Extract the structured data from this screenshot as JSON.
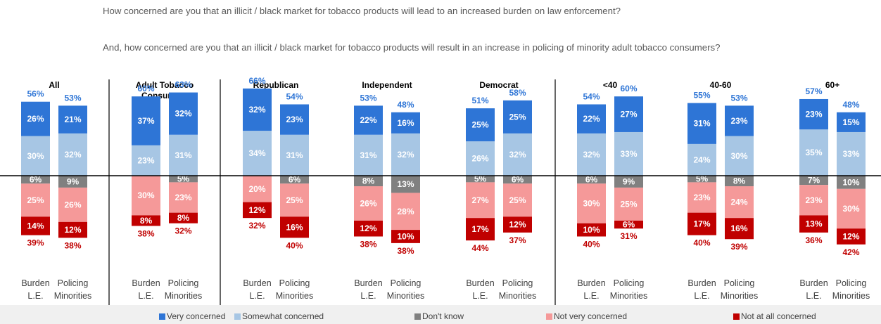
{
  "questions": [
    "How concerned are you that an illicit / black market for tobacco products will lead to an increased burden on law enforcement?",
    "And, how concerned are you that an illicit / black market for tobacco products will result in an increase in policing of minority adult tobacco consumers?"
  ],
  "chart_data": {
    "type": "bar",
    "stacked": "diverging",
    "series": [
      {
        "name": "Very concerned",
        "color": "#2e75d6",
        "side": "positive"
      },
      {
        "name": "Somewhat concerned",
        "color": "#a7c6e4",
        "side": "positive"
      },
      {
        "name": "Don't know",
        "color": "#808080",
        "side": "negative"
      },
      {
        "name": "Not very concerned",
        "color": "#f59999",
        "side": "negative"
      },
      {
        "name": "Not at all concerned",
        "color": "#c00000",
        "side": "negative"
      }
    ],
    "bar_labels": [
      [
        "Burden",
        "L.E."
      ],
      [
        "Policing",
        "Minorities"
      ]
    ],
    "groups": [
      {
        "name": "All",
        "bars": [
          {
            "total_concerned": "56%",
            "very": 26,
            "somewhat": 30,
            "dont_know": 6,
            "not_very": 25,
            "not_at_all": 14,
            "total_not": "39%"
          },
          {
            "total_concerned": "53%",
            "very": 21,
            "somewhat": 32,
            "dont_know": 9,
            "not_very": 26,
            "not_at_all": 12,
            "total_not": "38%"
          }
        ]
      },
      {
        "name": "Adult Tobacco Consumers",
        "bars": [
          {
            "total_concerned": "60%",
            "very": 37,
            "somewhat": 23,
            "dont_know": 0,
            "not_very": 30,
            "not_at_all": 8,
            "total_not": "38%"
          },
          {
            "total_concerned": "63%",
            "very": 32,
            "somewhat": 31,
            "dont_know": 5,
            "not_very": 23,
            "not_at_all": 8,
            "total_not": "32%"
          }
        ]
      },
      {
        "name": "Republican",
        "bars": [
          {
            "total_concerned": "66%",
            "very": 32,
            "somewhat": 34,
            "dont_know": 0,
            "not_very": 20,
            "not_at_all": 12,
            "total_not": "32%"
          },
          {
            "total_concerned": "54%",
            "very": 23,
            "somewhat": 31,
            "dont_know": 6,
            "not_very": 25,
            "not_at_all": 16,
            "total_not": "40%"
          }
        ]
      },
      {
        "name": "Independent",
        "bars": [
          {
            "total_concerned": "53%",
            "very": 22,
            "somewhat": 31,
            "dont_know": 8,
            "not_very": 26,
            "not_at_all": 12,
            "total_not": "38%"
          },
          {
            "total_concerned": "48%",
            "very": 16,
            "somewhat": 32,
            "dont_know": 13,
            "not_very": 28,
            "not_at_all": 10,
            "total_not": "38%"
          }
        ]
      },
      {
        "name": "Democrat",
        "bars": [
          {
            "total_concerned": "51%",
            "very": 25,
            "somewhat": 26,
            "dont_know": 5,
            "not_very": 27,
            "not_at_all": 17,
            "total_not": "44%"
          },
          {
            "total_concerned": "58%",
            "very": 25,
            "somewhat": 32,
            "dont_know": 6,
            "not_very": 25,
            "not_at_all": 12,
            "total_not": "37%"
          }
        ]
      },
      {
        "name": "<40",
        "bars": [
          {
            "total_concerned": "54%",
            "very": 22,
            "somewhat": 32,
            "dont_know": 6,
            "not_very": 30,
            "not_at_all": 10,
            "total_not": "40%"
          },
          {
            "total_concerned": "60%",
            "very": 27,
            "somewhat": 33,
            "dont_know": 9,
            "not_very": 25,
            "not_at_all": 6,
            "total_not": "31%"
          }
        ]
      },
      {
        "name": "40-60",
        "bars": [
          {
            "total_concerned": "55%",
            "very": 31,
            "somewhat": 24,
            "dont_know": 5,
            "not_very": 23,
            "not_at_all": 17,
            "total_not": "40%"
          },
          {
            "total_concerned": "53%",
            "very": 23,
            "somewhat": 30,
            "dont_know": 8,
            "not_very": 24,
            "not_at_all": 16,
            "total_not": "39%"
          }
        ]
      },
      {
        "name": "60+",
        "bars": [
          {
            "total_concerned": "57%",
            "very": 23,
            "somewhat": 35,
            "dont_know": 7,
            "not_very": 23,
            "not_at_all": 13,
            "total_not": "36%"
          },
          {
            "total_concerned": "48%",
            "very": 15,
            "somewhat": 33,
            "dont_know": 10,
            "not_very": 30,
            "not_at_all": 12,
            "total_not": "42%"
          }
        ]
      }
    ]
  }
}
